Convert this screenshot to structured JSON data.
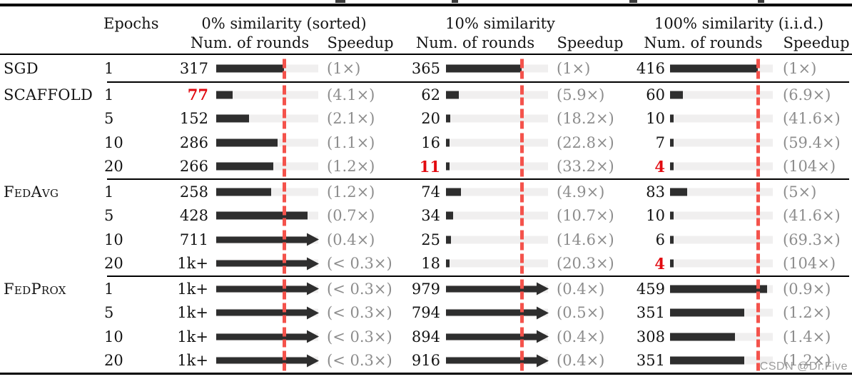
{
  "colors": {
    "bar": "#2e2e2e",
    "track": "#f0efef",
    "marker": "#f4534c",
    "red": "#e20a10",
    "gray": "#8d8d8d",
    "rule": "#000000",
    "wm": "#9c9c9c"
  },
  "header": {
    "epochs_label": "Epochs",
    "groups": [
      {
        "title": "0% similarity (sorted)",
        "rounds_label": "Num. of rounds",
        "speedup_label": "Speedup"
      },
      {
        "title": "10% similarity",
        "rounds_label": "Num. of rounds",
        "speedup_label": "Speedup"
      },
      {
        "title": "100% similarity (i.i.d.)",
        "rounds_label": "Num. of rounds",
        "speedup_label": "Speedup"
      }
    ]
  },
  "table": {
    "marker_pcts": [
      66.5,
      74.0,
      85.4
    ],
    "row_groups": [
      {
        "rows": [
          {
            "method": "SGD",
            "epochs": "1",
            "cells": [
              {
                "rounds": "317",
                "red": false,
                "bar_pct": 66.5,
                "arrow": false,
                "speedup": "(1×)"
              },
              {
                "rounds": "365",
                "red": false,
                "bar_pct": 74.0,
                "arrow": false,
                "speedup": "(1×)"
              },
              {
                "rounds": "416",
                "red": false,
                "bar_pct": 85.4,
                "arrow": false,
                "speedup": "(1×)"
              }
            ]
          }
        ]
      },
      {
        "rows": [
          {
            "method": "SCAFFOLD",
            "epochs": "1",
            "cells": [
              {
                "rounds": "77",
                "red": true,
                "bar_pct": 16.1,
                "arrow": false,
                "speedup": "(4.1×)"
              },
              {
                "rounds": "62",
                "red": false,
                "bar_pct": 12.6,
                "arrow": false,
                "speedup": "(5.9×)"
              },
              {
                "rounds": "60",
                "red": false,
                "bar_pct": 12.3,
                "arrow": false,
                "speedup": "(6.9×)"
              }
            ]
          },
          {
            "method": "",
            "epochs": "5",
            "cells": [
              {
                "rounds": "152",
                "red": false,
                "bar_pct": 31.9,
                "arrow": false,
                "speedup": "(2.1×)"
              },
              {
                "rounds": "20",
                "red": false,
                "bar_pct": 4.1,
                "arrow": false,
                "speedup": "(18.2×)"
              },
              {
                "rounds": "10",
                "red": false,
                "bar_pct": 2.1,
                "arrow": false,
                "speedup": "(41.6×)"
              }
            ]
          },
          {
            "method": "",
            "epochs": "10",
            "cells": [
              {
                "rounds": "286",
                "red": false,
                "bar_pct": 60.0,
                "arrow": false,
                "speedup": "(1.1×)"
              },
              {
                "rounds": "16",
                "red": false,
                "bar_pct": 3.2,
                "arrow": false,
                "speedup": "(22.8×)"
              },
              {
                "rounds": "7",
                "red": false,
                "bar_pct": 1.4,
                "arrow": false,
                "speedup": "(59.4×)"
              }
            ]
          },
          {
            "method": "",
            "epochs": "20",
            "cells": [
              {
                "rounds": "266",
                "red": false,
                "bar_pct": 55.8,
                "arrow": false,
                "speedup": "(1.2×)"
              },
              {
                "rounds": "11",
                "red": true,
                "bar_pct": 2.2,
                "arrow": false,
                "speedup": "(33.2×)"
              },
              {
                "rounds": "4",
                "red": true,
                "bar_pct": 0.8,
                "arrow": false,
                "speedup": "(104×)"
              }
            ]
          }
        ]
      },
      {
        "rows": [
          {
            "method": "FedAvg",
            "epochs": "1",
            "cells": [
              {
                "rounds": "258",
                "red": false,
                "bar_pct": 54.1,
                "arrow": false,
                "speedup": "(1.2×)"
              },
              {
                "rounds": "74",
                "red": false,
                "bar_pct": 15.0,
                "arrow": false,
                "speedup": "(4.9×)"
              },
              {
                "rounds": "83",
                "red": false,
                "bar_pct": 17.0,
                "arrow": false,
                "speedup": "(5×)"
              }
            ]
          },
          {
            "method": "",
            "epochs": "5",
            "cells": [
              {
                "rounds": "428",
                "red": false,
                "bar_pct": 89.7,
                "arrow": false,
                "speedup": "(0.7×)"
              },
              {
                "rounds": "34",
                "red": false,
                "bar_pct": 6.9,
                "arrow": false,
                "speedup": "(10.7×)"
              },
              {
                "rounds": "10",
                "red": false,
                "bar_pct": 2.1,
                "arrow": false,
                "speedup": "(41.6×)"
              }
            ]
          },
          {
            "method": "",
            "epochs": "10",
            "cells": [
              {
                "rounds": "711",
                "red": false,
                "bar_pct": 100,
                "arrow": true,
                "speedup": "(0.4×)"
              },
              {
                "rounds": "25",
                "red": false,
                "bar_pct": 5.1,
                "arrow": false,
                "speedup": "(14.6×)"
              },
              {
                "rounds": "6",
                "red": false,
                "bar_pct": 1.2,
                "arrow": false,
                "speedup": "(69.3×)"
              }
            ]
          },
          {
            "method": "",
            "epochs": "20",
            "cells": [
              {
                "rounds": "1k+",
                "red": false,
                "bar_pct": 100,
                "arrow": true,
                "speedup": "(< 0.3×)"
              },
              {
                "rounds": "18",
                "red": false,
                "bar_pct": 3.7,
                "arrow": false,
                "speedup": "(20.3×)"
              },
              {
                "rounds": "4",
                "red": true,
                "bar_pct": 0.8,
                "arrow": false,
                "speedup": "(104×)"
              }
            ]
          }
        ]
      },
      {
        "rows": [
          {
            "method": "FedProx",
            "epochs": "1",
            "cells": [
              {
                "rounds": "1k+",
                "red": false,
                "bar_pct": 100,
                "arrow": true,
                "speedup": "(< 0.3×)"
              },
              {
                "rounds": "979",
                "red": false,
                "bar_pct": 100,
                "arrow": true,
                "speedup": "(0.4×)"
              },
              {
                "rounds": "459",
                "red": false,
                "bar_pct": 94.3,
                "arrow": false,
                "speedup": "(0.9×)"
              }
            ]
          },
          {
            "method": "",
            "epochs": "5",
            "cells": [
              {
                "rounds": "1k+",
                "red": false,
                "bar_pct": 100,
                "arrow": true,
                "speedup": "(< 0.3×)"
              },
              {
                "rounds": "794",
                "red": false,
                "bar_pct": 100,
                "arrow": true,
                "speedup": "(0.5×)"
              },
              {
                "rounds": "351",
                "red": false,
                "bar_pct": 72.1,
                "arrow": false,
                "speedup": "(1.2×)"
              }
            ]
          },
          {
            "method": "",
            "epochs": "10",
            "cells": [
              {
                "rounds": "1k+",
                "red": false,
                "bar_pct": 100,
                "arrow": true,
                "speedup": "(< 0.3×)"
              },
              {
                "rounds": "894",
                "red": false,
                "bar_pct": 100,
                "arrow": true,
                "speedup": "(0.4×)"
              },
              {
                "rounds": "308",
                "red": false,
                "bar_pct": 63.2,
                "arrow": false,
                "speedup": "(1.4×)"
              }
            ]
          },
          {
            "method": "",
            "epochs": "20",
            "cells": [
              {
                "rounds": "1k+",
                "red": false,
                "bar_pct": 100,
                "arrow": true,
                "speedup": "(< 0.3×)"
              },
              {
                "rounds": "916",
                "red": false,
                "bar_pct": 100,
                "arrow": true,
                "speedup": "(0.4×)"
              },
              {
                "rounds": "351",
                "red": false,
                "bar_pct": 72.1,
                "arrow": false,
                "speedup": "(1.2×)"
              }
            ]
          }
        ]
      }
    ]
  },
  "chart_data": {
    "type": "bar",
    "orientation": "horizontal",
    "group_titles": [
      "0% similarity (sorted)",
      "10% similarity",
      "100% similarity (i.i.d.)"
    ],
    "methods": [
      "SGD",
      "SCAFFOLD",
      "SCAFFOLD",
      "SCAFFOLD",
      "SCAFFOLD",
      "FedAvg",
      "FedAvg",
      "FedAvg",
      "FedAvg",
      "FedProx",
      "FedProx",
      "FedProx",
      "FedProx"
    ],
    "epochs": [
      1,
      1,
      5,
      10,
      20,
      1,
      5,
      10,
      20,
      1,
      5,
      10,
      20
    ],
    "rounds": [
      [
        317,
        365,
        416
      ],
      [
        77,
        62,
        60
      ],
      [
        152,
        20,
        10
      ],
      [
        286,
        16,
        7
      ],
      [
        266,
        11,
        4
      ],
      [
        258,
        74,
        83
      ],
      [
        428,
        34,
        10
      ],
      [
        711,
        25,
        6
      ],
      [
        "1k+",
        18,
        4
      ],
      [
        "1k+",
        979,
        459
      ],
      [
        "1k+",
        794,
        351
      ],
      [
        "1k+",
        894,
        308
      ],
      [
        "1k+",
        916,
        351
      ]
    ],
    "speedups": [
      [
        "1×",
        "1×",
        "1×"
      ],
      [
        "4.1×",
        "5.9×",
        "6.9×"
      ],
      [
        "2.1×",
        "18.2×",
        "41.6×"
      ],
      [
        "1.1×",
        "22.8×",
        "59.4×"
      ],
      [
        "1.2×",
        "33.2×",
        "104×"
      ],
      [
        "1.2×",
        "4.9×",
        "5×"
      ],
      [
        "0.7×",
        "10.7×",
        "41.6×"
      ],
      [
        "0.4×",
        "14.6×",
        "69.3×"
      ],
      [
        "< 0.3×",
        "20.3×",
        "104×"
      ],
      [
        "< 0.3×",
        "0.4×",
        "0.9×"
      ],
      [
        "< 0.3×",
        "0.5×",
        "1.2×"
      ],
      [
        "< 0.3×",
        "0.4×",
        "1.4×"
      ],
      [
        "< 0.3×",
        "0.4×",
        "1.2×"
      ]
    ],
    "annotations": "red dashed vertical marker = SGD baseline (1×); arrowheads = bar exceeds axis range"
  },
  "watermark": "CSDN @Dr.Five"
}
